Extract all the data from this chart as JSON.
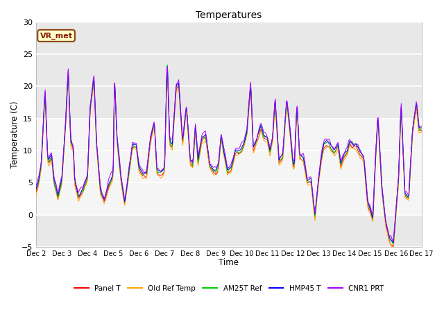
{
  "title": "Temperatures",
  "xlabel": "Time",
  "ylabel": "Temperature (C)",
  "ylim": [
    -5,
    30
  ],
  "xlim_days": [
    0,
    15
  ],
  "series_colors": {
    "Panel T": "#ff0000",
    "Old Ref Temp": "#ffa500",
    "AM25T Ref": "#00cc00",
    "HMP45 T": "#0000ff",
    "CNR1 PRT": "#aa00ff"
  },
  "x_tick_labels": [
    "Dec 2",
    "Dec 3",
    "Dec 4",
    "Dec 5",
    "Dec 6",
    "Dec 7",
    "Dec 8",
    "Dec 9",
    "Dec 10",
    "Dec 11",
    "Dec 12",
    "Dec 13",
    "Dec 14",
    "Dec 15",
    "Dec 16",
    "Dec 17"
  ],
  "annotation_text": "VR_met",
  "yticks": [
    -5,
    0,
    5,
    10,
    15,
    20,
    25,
    30
  ],
  "bg_color": "#e8e8e8",
  "band_low": 0,
  "band_high": 15,
  "band_color": "#f5f5f5",
  "grid_color": "white",
  "lw": 0.7
}
